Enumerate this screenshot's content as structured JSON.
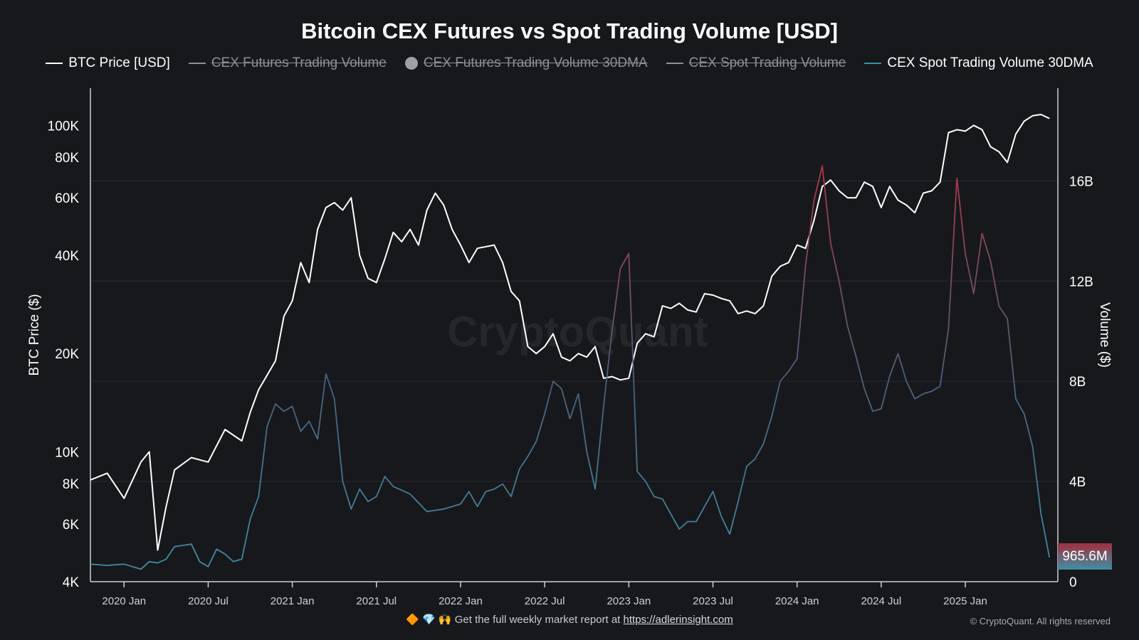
{
  "header": {
    "title": "Bitcoin CEX Futures vs Spot Trading Volume [USD]"
  },
  "legend": [
    {
      "label": "BTC Price [USD]",
      "color": "#ffffff",
      "active": true,
      "marker": "line"
    },
    {
      "label": "CEX Futures Trading Volume",
      "color": "#8f9096",
      "active": false,
      "marker": "line"
    },
    {
      "label": "CEX Futures Trading Volume 30DMA",
      "color": "#9fa0a6",
      "active": false,
      "marker": "dot"
    },
    {
      "label": "CEX Spot Trading Volume",
      "color": "#8f9096",
      "active": false,
      "marker": "line"
    },
    {
      "label": "CEX Spot Trading Volume 30DMA",
      "color": "#3f8ea5",
      "active": true,
      "marker": "line"
    }
  ],
  "watermark": "CryptoQuant",
  "footer": {
    "emojis": "🔶 💎 🙌",
    "text": "Get the full weekly market report at",
    "link": "https://adlerinsight.com",
    "copyright": "© CryptoQuant. All rights reserved"
  },
  "badge": {
    "label": "965.6M"
  },
  "chart_data": {
    "type": "line",
    "x_ticks": [
      "2020 Jan",
      "2020 Jul",
      "2021 Jan",
      "2021 Jul",
      "2022 Jan",
      "2022 Jul",
      "2023 Jan",
      "2023 Jul",
      "2024 Jan",
      "2024 Jul",
      "2025 Jan"
    ],
    "ylabel_left": "BTC Price ($)",
    "ylabel_right": "Volume ($)",
    "y_left_ticks": [
      "4K",
      "6K",
      "8K",
      "10K",
      "20K",
      "40K",
      "60K",
      "80K",
      "100K"
    ],
    "y_left_tick_values": [
      4000,
      6000,
      8000,
      10000,
      20000,
      40000,
      60000,
      80000,
      100000
    ],
    "y_left_scale": "log",
    "y_left_range": [
      4000,
      130000
    ],
    "y_right_ticks": [
      "0",
      "4B",
      "8B",
      "12B",
      "16B"
    ],
    "y_right_tick_values": [
      0,
      4,
      8,
      12,
      16
    ],
    "y_right_range": [
      0,
      19.7
    ],
    "x_range": [
      2019.8,
      2025.55
    ],
    "series": [
      {
        "name": "BTC Price [USD]",
        "color": "#ffffff",
        "axis": "left",
        "x": [
          2019.8,
          2019.9,
          2020.0,
          2020.1,
          2020.15,
          2020.2,
          2020.25,
          2020.3,
          2020.4,
          2020.5,
          2020.6,
          2020.7,
          2020.75,
          2020.8,
          2020.9,
          2020.95,
          2021.0,
          2021.05,
          2021.1,
          2021.15,
          2021.2,
          2021.25,
          2021.3,
          2021.35,
          2021.4,
          2021.45,
          2021.5,
          2021.55,
          2021.6,
          2021.65,
          2021.7,
          2021.75,
          2021.8,
          2021.85,
          2021.9,
          2021.95,
          2022.0,
          2022.05,
          2022.1,
          2022.2,
          2022.25,
          2022.3,
          2022.35,
          2022.4,
          2022.45,
          2022.5,
          2022.55,
          2022.6,
          2022.65,
          2022.7,
          2022.75,
          2022.8,
          2022.85,
          2022.9,
          2022.95,
          2023.0,
          2023.05,
          2023.1,
          2023.15,
          2023.2,
          2023.25,
          2023.3,
          2023.35,
          2023.4,
          2023.45,
          2023.5,
          2023.55,
          2023.6,
          2023.65,
          2023.7,
          2023.75,
          2023.8,
          2023.85,
          2023.9,
          2023.95,
          2024.0,
          2024.05,
          2024.1,
          2024.15,
          2024.2,
          2024.25,
          2024.3,
          2024.35,
          2024.4,
          2024.45,
          2024.5,
          2024.55,
          2024.6,
          2024.65,
          2024.7,
          2024.75,
          2024.8,
          2024.85,
          2024.9,
          2024.95,
          2025.0,
          2025.05,
          2025.1,
          2025.15,
          2025.2,
          2025.25,
          2025.3,
          2025.35,
          2025.4,
          2025.45,
          2025.5
        ],
        "values": [
          8200,
          8600,
          7200,
          9300,
          10000,
          5000,
          6800,
          8800,
          9600,
          9300,
          11700,
          10800,
          13200,
          15500,
          19000,
          26000,
          29000,
          38000,
          33000,
          48000,
          56000,
          58000,
          55000,
          60000,
          40000,
          34000,
          33000,
          39000,
          47000,
          44000,
          48000,
          43000,
          55000,
          62000,
          57000,
          48000,
          43000,
          38000,
          42000,
          43000,
          38000,
          31000,
          29000,
          21000,
          20000,
          21000,
          23000,
          19500,
          19000,
          20000,
          19500,
          21000,
          16800,
          17000,
          16600,
          16800,
          21500,
          23000,
          22500,
          28000,
          27500,
          28500,
          27200,
          26800,
          30500,
          30200,
          29500,
          29000,
          26500,
          27000,
          26500,
          28000,
          34500,
          37000,
          38000,
          43000,
          42000,
          51000,
          65000,
          68000,
          63000,
          60000,
          60000,
          67000,
          65000,
          56000,
          65000,
          59000,
          57000,
          54000,
          62000,
          63000,
          67000,
          95000,
          97000,
          96000,
          100000,
          97000,
          86000,
          83000,
          77000,
          94000,
          103000,
          107000,
          108000,
          105000
        ]
      },
      {
        "name": "CEX Spot Trading Volume 30DMA",
        "color": "#3f8ea5",
        "axis": "right",
        "x": [
          2019.8,
          2019.9,
          2020.0,
          2020.1,
          2020.15,
          2020.2,
          2020.25,
          2020.3,
          2020.4,
          2020.45,
          2020.5,
          2020.55,
          2020.6,
          2020.65,
          2020.7,
          2020.75,
          2020.8,
          2020.85,
          2020.9,
          2020.95,
          2021.0,
          2021.05,
          2021.1,
          2021.15,
          2021.2,
          2021.25,
          2021.3,
          2021.35,
          2021.4,
          2021.45,
          2021.5,
          2021.55,
          2021.6,
          2021.7,
          2021.8,
          2021.9,
          2022.0,
          2022.05,
          2022.1,
          2022.15,
          2022.2,
          2022.25,
          2022.3,
          2022.35,
          2022.4,
          2022.45,
          2022.5,
          2022.55,
          2022.6,
          2022.65,
          2022.7,
          2022.75,
          2022.8,
          2022.85,
          2022.9,
          2022.95,
          2023.0,
          2023.05,
          2023.1,
          2023.15,
          2023.2,
          2023.25,
          2023.3,
          2023.35,
          2023.4,
          2023.5,
          2023.55,
          2023.6,
          2023.65,
          2023.7,
          2023.75,
          2023.8,
          2023.85,
          2023.9,
          2023.95,
          2024.0,
          2024.05,
          2024.1,
          2024.15,
          2024.2,
          2024.25,
          2024.3,
          2024.35,
          2024.4,
          2024.45,
          2024.5,
          2024.55,
          2024.6,
          2024.65,
          2024.7,
          2024.75,
          2024.8,
          2024.85,
          2024.9,
          2024.95,
          2025.0,
          2025.05,
          2025.1,
          2025.15,
          2025.2,
          2025.25,
          2025.3,
          2025.35,
          2025.4,
          2025.45,
          2025.5
        ],
        "values": [
          0.7,
          0.65,
          0.7,
          0.5,
          0.8,
          0.75,
          0.9,
          1.4,
          1.5,
          0.8,
          0.6,
          1.3,
          1.1,
          0.8,
          0.9,
          2.5,
          3.4,
          6.2,
          7.1,
          6.8,
          7.0,
          6.0,
          6.4,
          5.7,
          8.3,
          7.3,
          4.0,
          2.9,
          3.7,
          3.2,
          3.4,
          4.2,
          3.8,
          3.5,
          2.8,
          2.9,
          3.1,
          3.6,
          3.0,
          3.6,
          3.7,
          3.9,
          3.4,
          4.5,
          5.0,
          5.6,
          6.7,
          8.0,
          7.7,
          6.5,
          7.5,
          5.2,
          3.7,
          7.0,
          10.0,
          12.5,
          13.1,
          4.4,
          4.0,
          3.4,
          3.3,
          2.7,
          2.1,
          2.4,
          2.4,
          3.6,
          2.6,
          1.9,
          3.2,
          4.6,
          4.9,
          5.5,
          6.6,
          8.0,
          8.4,
          8.9,
          12.6,
          15.2,
          16.6,
          13.5,
          12.0,
          10.2,
          9.0,
          7.7,
          6.8,
          6.9,
          8.2,
          9.1,
          8.0,
          7.3,
          7.5,
          7.6,
          7.8,
          10.1,
          16.1,
          13.1,
          11.5,
          13.9,
          12.8,
          11.0,
          10.5,
          7.3,
          6.7,
          5.4,
          2.7,
          0.97
        ]
      }
    ],
    "annotations": [
      "965.6M"
    ]
  }
}
